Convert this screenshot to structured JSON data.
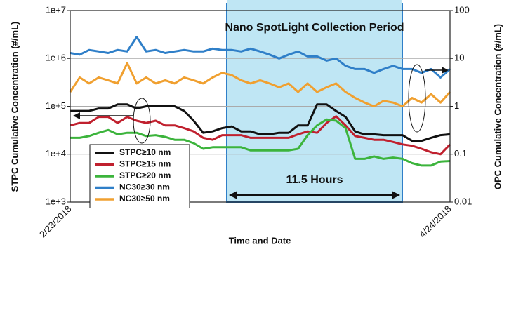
{
  "chart_data": {
    "type": "line",
    "x_label": "Time and Date",
    "y_label": "STPC Cumulative Concentration (#/mL)",
    "y2_label": "OPC Cumulative Concentration (#/mL)",
    "annotations": [
      "Nano SpotLight Collection Period",
      "11.5 Hours"
    ],
    "log_scale": true,
    "grid": true,
    "legend": "lower-left",
    "categories": [
      "2/23/2018",
      null,
      null,
      null,
      null,
      null,
      null,
      null,
      null,
      null,
      null,
      null,
      null,
      null,
      null,
      null,
      null,
      null,
      null,
      null,
      null,
      null,
      null,
      null,
      null,
      null,
      null,
      null,
      null,
      null,
      null,
      null,
      null,
      null,
      null,
      null,
      null,
      null,
      null,
      null,
      "4/24/2018"
    ],
    "ylim": [
      1000,
      10000000
    ],
    "yticks": [
      {
        "value": 1000,
        "label": "1e+3"
      },
      {
        "value": 10000,
        "label": "1e+4"
      },
      {
        "value": 100000,
        "label": "1e+5"
      },
      {
        "value": 1000000,
        "label": "1e+6"
      },
      {
        "value": 10000000,
        "label": "1e+7"
      }
    ],
    "y2lim": [
      0.01,
      100
    ],
    "y2ticks": [
      0.01,
      0.1,
      1,
      10,
      100
    ],
    "series": [
      {
        "name": "STPC≥10 nm",
        "color": "#111111",
        "values": [
          80000,
          80000,
          80000,
          90000,
          90000,
          110000,
          110000,
          90000,
          100000,
          100000,
          100000,
          100000,
          80000,
          50000,
          28000,
          30000,
          35000,
          38000,
          30000,
          30000,
          26000,
          26000,
          28000,
          28000,
          40000,
          40000,
          110000,
          110000,
          80000,
          60000,
          30000,
          26000,
          26000,
          25000,
          25000,
          25000,
          19000,
          19000,
          22000,
          25000,
          26000
        ]
      },
      {
        "name": "STPC≥15 nm",
        "color": "#c0202e",
        "values": [
          40000,
          45000,
          45000,
          60000,
          60000,
          45000,
          60000,
          50000,
          45000,
          50000,
          40000,
          40000,
          35000,
          30000,
          22000,
          20000,
          25000,
          25000,
          25000,
          22000,
          22000,
          22000,
          22000,
          22000,
          26000,
          30000,
          28000,
          45000,
          62000,
          40000,
          24000,
          22000,
          20000,
          20000,
          18000,
          16000,
          15000,
          13000,
          11000,
          10000,
          16000
        ]
      },
      {
        "name": "STPC≥20 nm",
        "color": "#3cb43c",
        "values": [
          22000,
          22000,
          24000,
          28000,
          32000,
          26000,
          28000,
          28000,
          24000,
          25000,
          23000,
          20000,
          20000,
          17000,
          13000,
          14000,
          14000,
          14000,
          14000,
          12000,
          12000,
          12000,
          12000,
          12000,
          13000,
          25000,
          40000,
          53000,
          50000,
          35000,
          8000,
          8000,
          9000,
          8000,
          8500,
          8000,
          6500,
          5800,
          5800,
          7000,
          7200
        ]
      },
      {
        "name": "NC30≥30 nm",
        "color": "#2f7fc8",
        "axis": "y2",
        "values": [
          13,
          12,
          15,
          14,
          13,
          15,
          14,
          28,
          14,
          15,
          13,
          14,
          15,
          14,
          14,
          16,
          15,
          15,
          14,
          16,
          14,
          12,
          10,
          12,
          14,
          11,
          11,
          9,
          10,
          7,
          6,
          6,
          5,
          6,
          7,
          6,
          6,
          5,
          6,
          4,
          6
        ]
      },
      {
        "name": "NC30≥50 nm",
        "color": "#f0a030",
        "axis": "y2",
        "values": [
          2,
          4,
          3,
          4,
          3.5,
          3,
          8,
          3,
          4,
          3,
          3.5,
          3,
          4,
          3.5,
          3,
          4,
          5,
          4.5,
          3.5,
          3,
          3.5,
          3,
          2.5,
          3,
          2,
          3,
          2,
          2.5,
          3,
          2,
          1.5,
          1.2,
          1,
          1.3,
          1.2,
          1,
          1.5,
          1.2,
          1.8,
          1.2,
          2
        ]
      }
    ]
  }
}
